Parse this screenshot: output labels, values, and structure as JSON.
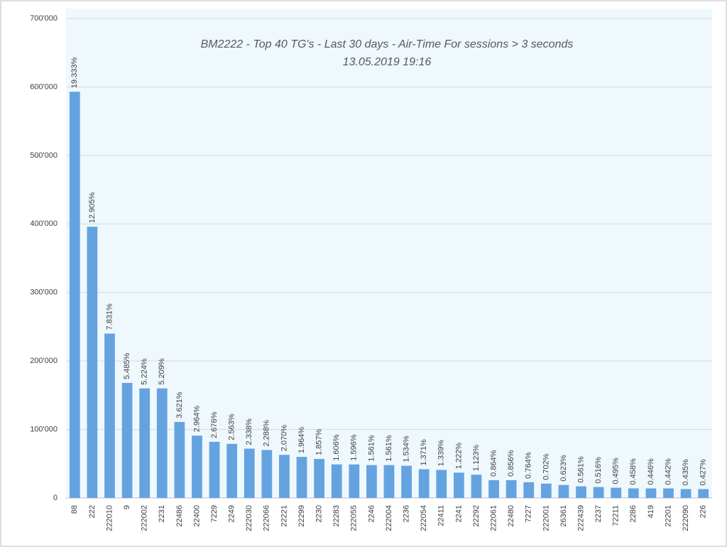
{
  "chart_data": {
    "type": "bar",
    "title": "BM2222 - Top 40 TG's - Last 30 days - Air-Time For sessions > 3 seconds",
    "subtitle": "13.05.2019 19:16",
    "categories": [
      "88",
      "222",
      "222010",
      "9",
      "222002",
      "2231",
      "22486",
      "22400",
      "7229",
      "2249",
      "222030",
      "222066",
      "22221",
      "22299",
      "2230",
      "22283",
      "222055",
      "2246",
      "222004",
      "2236",
      "222054",
      "22411",
      "2241",
      "22292",
      "222061",
      "22480",
      "7227",
      "222001",
      "26361",
      "222439",
      "2237",
      "72211",
      "2286",
      "419",
      "22201",
      "222090",
      "226"
    ],
    "values": [
      593000,
      396000,
      240000,
      168000,
      160000,
      160000,
      111000,
      91000,
      82000,
      79000,
      72000,
      70000,
      63000,
      60000,
      57000,
      49000,
      49000,
      48000,
      48000,
      47000,
      42000,
      41000,
      37000,
      34000,
      26000,
      26000,
      23000,
      21000,
      19000,
      17000,
      16000,
      15000,
      14000,
      14000,
      14000,
      13000,
      13000
    ],
    "share_labels": [
      "19.333%",
      "12.905%",
      "7.831%",
      "5.485%",
      "5.224%",
      "5.209%",
      "3.621%",
      "2.964%",
      "2.676%",
      "2.563%",
      "2.338%",
      "2.288%",
      "2.070%",
      "1.964%",
      "1.857%",
      "1.606%",
      "1.596%",
      "1.561%",
      "1.561%",
      "1.534%",
      "1.371%",
      "1.339%",
      "1.222%",
      "1.123%",
      "0.864%",
      "0.856%",
      "0.764%",
      "0.702%",
      "0.623%",
      "0.561%",
      "0.516%",
      "0.495%",
      "0.458%",
      "0.446%",
      "0.442%",
      "0.435%",
      "0.427%"
    ],
    "color": "#65a3e0",
    "ylim": [
      0,
      700000
    ],
    "yticks": [
      0,
      {
        "value": 100000,
        "label": "100'000"
      },
      {
        "value": 200000,
        "label": "200'000"
      },
      {
        "value": 300000,
        "label": "300'000"
      },
      {
        "value": 400000,
        "label": "400'000"
      },
      {
        "value": 500000,
        "label": "500'000"
      },
      {
        "value": 600000,
        "label": "600'000"
      },
      {
        "value": 700000,
        "label": "700'000"
      }
    ],
    "grid": true
  }
}
